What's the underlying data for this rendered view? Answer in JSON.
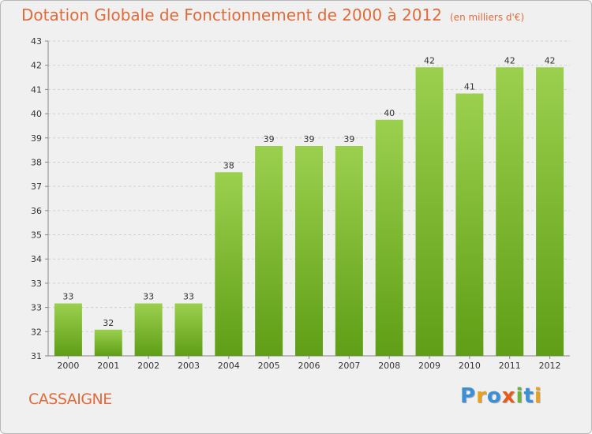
{
  "header": {
    "title": "Dotation Globale de Fonctionnement de 2000 à 2012",
    "units": "(en milliers d'€)"
  },
  "commune": "CASSAIGNE",
  "logo": {
    "text": "Proxiti",
    "letters": [
      "P",
      "r",
      "o",
      "x",
      "i",
      "t",
      "i"
    ]
  },
  "colors": {
    "title": "#e06b3a",
    "bar_top": "#9bd04e",
    "bar_bottom": "#5f9e16",
    "background": "#f0f0f0"
  },
  "chart_data": {
    "type": "bar",
    "title": "Dotation Globale de Fonctionnement de 2000 à 2012",
    "subtitle": "(en milliers d'€)",
    "categories": [
      "2000",
      "2001",
      "2002",
      "2003",
      "2004",
      "2005",
      "2006",
      "2007",
      "2008",
      "2009",
      "2010",
      "2011",
      "2012"
    ],
    "values": [
      33,
      32,
      33,
      33,
      38,
      39,
      39,
      39,
      40,
      42,
      41,
      42,
      42
    ],
    "labels": [
      "33",
      "32",
      "33",
      "33",
      "38",
      "39",
      "39",
      "39",
      "40",
      "42",
      "41",
      "42",
      "42"
    ],
    "yticks": [
      "31",
      "32",
      "33",
      "33",
      "34",
      "35",
      "36",
      "37",
      "38",
      "39",
      "40",
      "41",
      "42",
      "43"
    ],
    "ylim": [
      31,
      43
    ],
    "xlabel": "",
    "ylabel": "",
    "grid": "horizontal dashed",
    "legend": "none"
  }
}
